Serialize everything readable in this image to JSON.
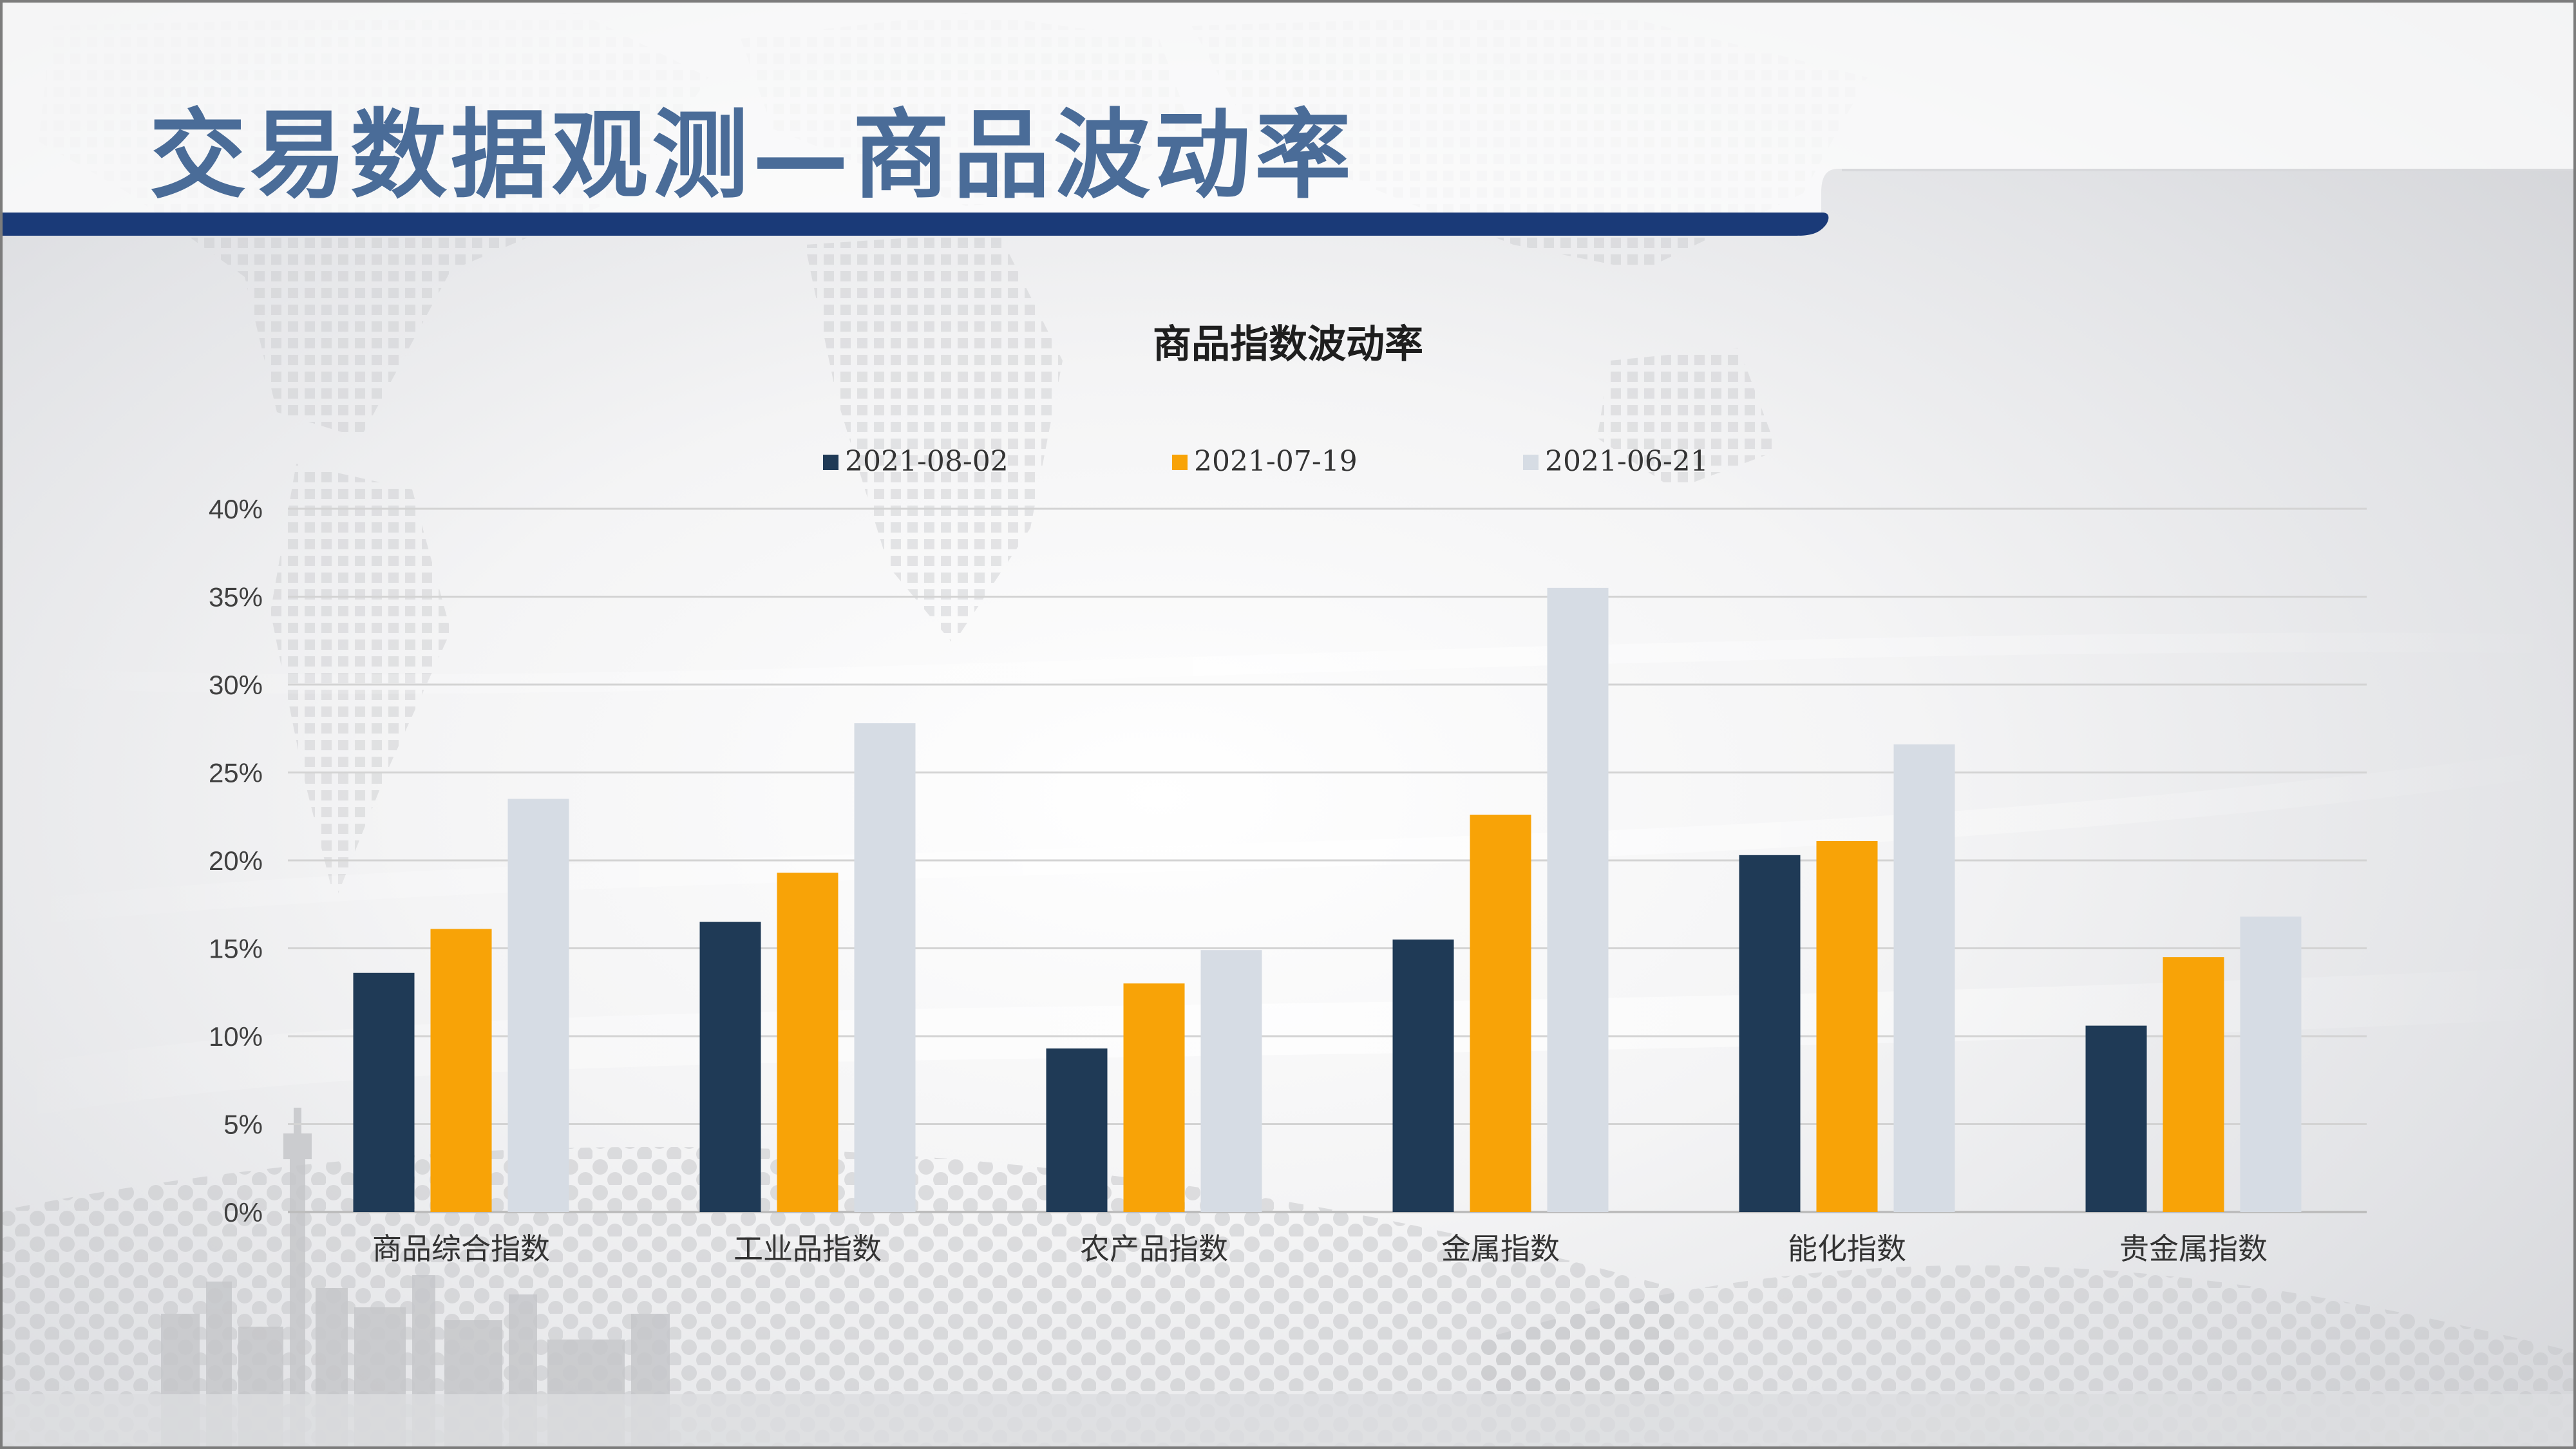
{
  "slide": {
    "title": "交易数据观测—商品波动率"
  },
  "chart_data": {
    "type": "bar",
    "title": "商品指数波动率",
    "categories": [
      "商品综合指数",
      "工业品指数",
      "农产品指数",
      "金属指数",
      "能化指数",
      "贵金属指数"
    ],
    "series": [
      {
        "name": "2021-08-02",
        "color": "#1f3a56",
        "values": [
          0.136,
          0.165,
          0.093,
          0.155,
          0.203,
          0.106
        ]
      },
      {
        "name": "2021-07-19",
        "color": "#f8a307",
        "values": [
          0.161,
          0.193,
          0.13,
          0.226,
          0.211,
          0.145
        ]
      },
      {
        "name": "2021-06-21",
        "color": "#d6dce4",
        "values": [
          0.235,
          0.278,
          0.149,
          0.355,
          0.266,
          0.168
        ]
      }
    ],
    "yticks": [
      "0%",
      "5%",
      "10%",
      "15%",
      "20%",
      "25%",
      "30%",
      "35%",
      "40%"
    ],
    "ylim": [
      0,
      0.4
    ],
    "grid": true,
    "legend": "top-center"
  }
}
